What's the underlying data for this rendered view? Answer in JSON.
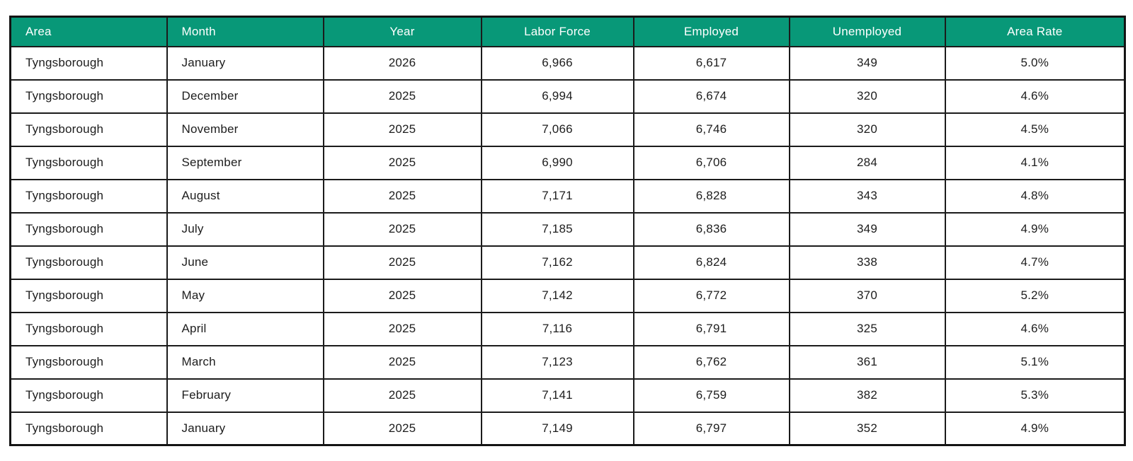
{
  "colors": {
    "header_bg": "#089878",
    "header_text": "#ffffff",
    "border": "#1b1b1b",
    "body_text": "#1d1d1d",
    "row_bg": "#ffffff"
  },
  "chart_data": {
    "type": "table",
    "columns": [
      {
        "key": "area",
        "label": "Area",
        "align": "left"
      },
      {
        "key": "month",
        "label": "Month",
        "align": "left"
      },
      {
        "key": "year",
        "label": "Year",
        "align": "center"
      },
      {
        "key": "labor-force",
        "label": "Labor Force",
        "align": "center"
      },
      {
        "key": "employed",
        "label": "Employed",
        "align": "center"
      },
      {
        "key": "unemployed",
        "label": "Unemployed",
        "align": "center"
      },
      {
        "key": "area-rate",
        "label": "Area Rate",
        "align": "center"
      }
    ],
    "rows": [
      [
        "Tyngsborough",
        "January",
        "2026",
        "6,966",
        "6,617",
        "349",
        "5.0%"
      ],
      [
        "Tyngsborough",
        "December",
        "2025",
        "6,994",
        "6,674",
        "320",
        "4.6%"
      ],
      [
        "Tyngsborough",
        "November",
        "2025",
        "7,066",
        "6,746",
        "320",
        "4.5%"
      ],
      [
        "Tyngsborough",
        "September",
        "2025",
        "6,990",
        "6,706",
        "284",
        "4.1%"
      ],
      [
        "Tyngsborough",
        "August",
        "2025",
        "7,171",
        "6,828",
        "343",
        "4.8%"
      ],
      [
        "Tyngsborough",
        "July",
        "2025",
        "7,185",
        "6,836",
        "349",
        "4.9%"
      ],
      [
        "Tyngsborough",
        "June",
        "2025",
        "7,162",
        "6,824",
        "338",
        "4.7%"
      ],
      [
        "Tyngsborough",
        "May",
        "2025",
        "7,142",
        "6,772",
        "370",
        "5.2%"
      ],
      [
        "Tyngsborough",
        "April",
        "2025",
        "7,116",
        "6,791",
        "325",
        "4.6%"
      ],
      [
        "Tyngsborough",
        "March",
        "2025",
        "7,123",
        "6,762",
        "361",
        "5.1%"
      ],
      [
        "Tyngsborough",
        "February",
        "2025",
        "7,141",
        "6,759",
        "382",
        "5.3%"
      ],
      [
        "Tyngsborough",
        "January",
        "2025",
        "7,149",
        "6,797",
        "352",
        "4.9%"
      ]
    ]
  }
}
